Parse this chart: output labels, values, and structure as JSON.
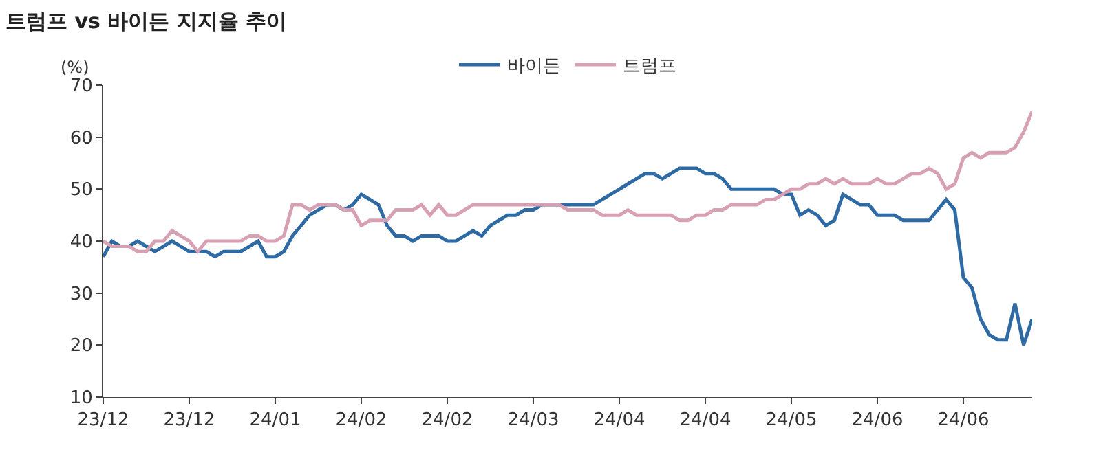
{
  "chart_data": {
    "type": "line",
    "title": "트럼프 vs 바이든 지지율 추이",
    "ylabel": "(%)",
    "categories": [
      "23/12",
      null,
      null,
      null,
      null,
      null,
      null,
      null,
      null,
      null,
      "23/12",
      null,
      null,
      null,
      null,
      null,
      null,
      null,
      null,
      null,
      "24/01",
      null,
      null,
      null,
      null,
      null,
      null,
      null,
      null,
      null,
      "24/02",
      null,
      null,
      null,
      null,
      null,
      null,
      null,
      null,
      null,
      "24/02",
      null,
      null,
      null,
      null,
      null,
      null,
      null,
      null,
      null,
      "24/03",
      null,
      null,
      null,
      null,
      null,
      null,
      null,
      null,
      null,
      "24/04",
      null,
      null,
      null,
      null,
      null,
      null,
      null,
      null,
      null,
      "24/04",
      null,
      null,
      null,
      null,
      null,
      null,
      null,
      null,
      null,
      "24/05",
      null,
      null,
      null,
      null,
      null,
      null,
      null,
      null,
      null,
      "24/06",
      null,
      null,
      null,
      null,
      null,
      null,
      null,
      null,
      null,
      "24/06",
      null,
      null,
      null,
      null,
      null,
      null,
      null,
      null
    ],
    "series": [
      {
        "name": "바이든",
        "color": "#2e6aa3",
        "values": [
          37,
          40,
          39,
          39,
          40,
          39,
          38,
          39,
          40,
          39,
          38,
          38,
          38,
          37,
          38,
          38,
          38,
          39,
          40,
          37,
          37,
          38,
          41,
          43,
          45,
          46,
          47,
          47,
          46,
          47,
          49,
          48,
          47,
          43,
          41,
          41,
          40,
          41,
          41,
          41,
          40,
          40,
          41,
          42,
          41,
          43,
          44,
          45,
          45,
          46,
          46,
          47,
          47,
          47,
          47,
          47,
          47,
          47,
          48,
          49,
          50,
          51,
          52,
          53,
          53,
          52,
          53,
          54,
          54,
          54,
          53,
          53,
          52,
          50,
          50,
          50,
          50,
          50,
          50,
          49,
          49,
          45,
          46,
          45,
          43,
          44,
          49,
          48,
          47,
          47,
          45,
          45,
          45,
          44,
          44,
          44,
          44,
          46,
          48,
          46,
          33,
          31,
          25,
          22,
          21,
          21,
          28,
          20,
          25
        ]
      },
      {
        "name": "트럼프",
        "color": "#d8a1b3",
        "values": [
          40,
          39,
          39,
          39,
          38,
          38,
          40,
          40,
          42,
          41,
          40,
          38,
          40,
          40,
          40,
          40,
          40,
          41,
          41,
          40,
          40,
          41,
          47,
          47,
          46,
          47,
          47,
          47,
          46,
          46,
          43,
          44,
          44,
          44,
          46,
          46,
          46,
          47,
          45,
          47,
          45,
          45,
          46,
          47,
          47,
          47,
          47,
          47,
          47,
          47,
          47,
          47,
          47,
          47,
          46,
          46,
          46,
          46,
          45,
          45,
          45,
          46,
          45,
          45,
          45,
          45,
          45,
          44,
          44,
          45,
          45,
          46,
          46,
          47,
          47,
          47,
          47,
          48,
          48,
          49,
          50,
          50,
          51,
          51,
          52,
          51,
          52,
          51,
          51,
          51,
          52,
          51,
          51,
          52,
          53,
          53,
          54,
          53,
          50,
          51,
          56,
          57,
          56,
          57,
          57,
          57,
          58,
          61,
          65
        ]
      }
    ],
    "ylim": [
      10,
      70
    ],
    "yticks": [
      10,
      20,
      30,
      40,
      50,
      60,
      70
    ],
    "legend": "top",
    "marker": "none",
    "line_style": "solid"
  }
}
